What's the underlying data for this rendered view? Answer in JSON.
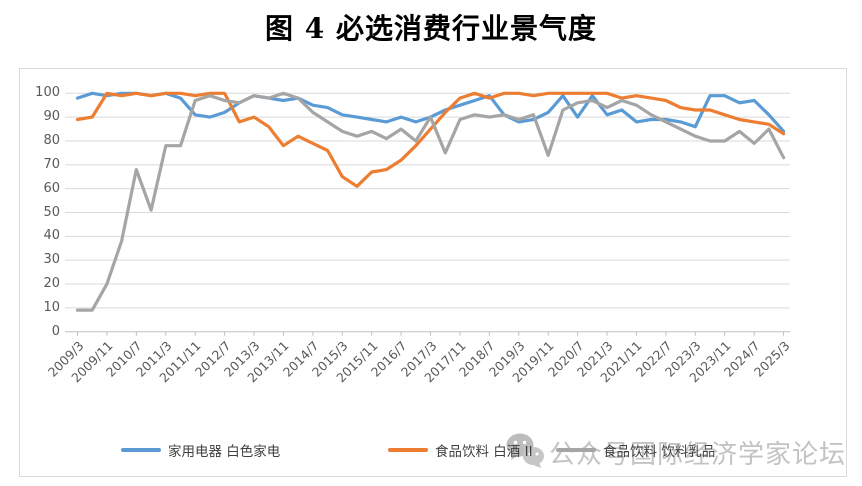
{
  "title": "图 4 必选消费行业景气度",
  "watermark": {
    "icon": "wechat-icon",
    "text": "公众号国际经济学家论坛"
  },
  "colors": {
    "blue": "#5B9BD5",
    "orange": "#ED7D31",
    "gray": "#A5A5A5",
    "grid": "#D9D9D9",
    "axis": "#BFBFBF",
    "axis_text": "#595959",
    "watermark": "#C3C3C3"
  },
  "chart_data": {
    "type": "line",
    "title": "图 4 必选消费行业景气度",
    "ylim": [
      0,
      100
    ],
    "y_ticks": [
      0,
      10,
      20,
      30,
      40,
      50,
      60,
      70,
      80,
      90,
      100
    ],
    "grid": true,
    "legend_position": "bottom",
    "x_tick_labels": [
      "2009/3",
      "2009/11",
      "2010/7",
      "2011/3",
      "2011/11",
      "2012/7",
      "2013/3",
      "2013/11",
      "2014/7",
      "2015/3",
      "2015/11",
      "2016/7",
      "2017/3",
      "2017/11",
      "2018/7",
      "2019/3",
      "2019/11",
      "2020/7",
      "2021/3",
      "2021/11",
      "2022/7",
      "2023/3",
      "2023/11",
      "2024/7",
      "2025/3"
    ],
    "x": [
      "2009/3",
      "2009/7",
      "2009/11",
      "2010/3",
      "2010/7",
      "2010/11",
      "2011/3",
      "2011/7",
      "2011/11",
      "2012/3",
      "2012/7",
      "2012/11",
      "2013/3",
      "2013/7",
      "2013/11",
      "2014/3",
      "2014/7",
      "2014/11",
      "2015/3",
      "2015/7",
      "2015/11",
      "2016/3",
      "2016/7",
      "2016/11",
      "2017/3",
      "2017/7",
      "2017/11",
      "2018/3",
      "2018/7",
      "2018/11",
      "2019/3",
      "2019/7",
      "2019/11",
      "2020/3",
      "2020/7",
      "2020/11",
      "2021/3",
      "2021/7",
      "2021/11",
      "2022/3",
      "2022/7",
      "2022/11",
      "2023/3",
      "2023/7",
      "2023/11",
      "2024/3",
      "2024/7",
      "2024/11",
      "2025/3"
    ],
    "series": [
      {
        "name": "家用电器 白色家电",
        "color": "#5B9BD5",
        "values": [
          98,
          100,
          99,
          100,
          100,
          99,
          100,
          98,
          91,
          90,
          92,
          96,
          99,
          98,
          97,
          98,
          95,
          94,
          91,
          90,
          89,
          88,
          90,
          88,
          90,
          93,
          95,
          97,
          99,
          91,
          88,
          89,
          92,
          99,
          90,
          99,
          91,
          93,
          88,
          89,
          89,
          88,
          86,
          99,
          99,
          96,
          97,
          91,
          84
        ]
      },
      {
        "name": "食品饮料 白酒 II",
        "color": "#ED7D31",
        "values": [
          89,
          90,
          100,
          99,
          100,
          99,
          100,
          100,
          99,
          100,
          100,
          88,
          90,
          86,
          78,
          82,
          79,
          76,
          65,
          61,
          67,
          68,
          72,
          78,
          85,
          92,
          98,
          100,
          98,
          100,
          100,
          99,
          100,
          100,
          100,
          100,
          100,
          98,
          99,
          98,
          97,
          94,
          93,
          93,
          91,
          89,
          88,
          87,
          83
        ]
      },
      {
        "name": "食品饮料 饮料乳品",
        "color": "#A5A5A5",
        "values": [
          9,
          9,
          20,
          38,
          68,
          51,
          78,
          78,
          97,
          99,
          97,
          96,
          99,
          98,
          100,
          98,
          92,
          88,
          84,
          82,
          84,
          81,
          85,
          80,
          90,
          75,
          89,
          91,
          90,
          91,
          89,
          91,
          74,
          93,
          96,
          97,
          94,
          97,
          95,
          91,
          88,
          85,
          82,
          80,
          80,
          84,
          79,
          85,
          73
        ]
      }
    ]
  },
  "legend": {
    "items": [
      {
        "label": "家用电器 白色家电"
      },
      {
        "label": "食品饮料 白酒 II"
      },
      {
        "label": "食品饮料 饮料乳品"
      }
    ]
  }
}
